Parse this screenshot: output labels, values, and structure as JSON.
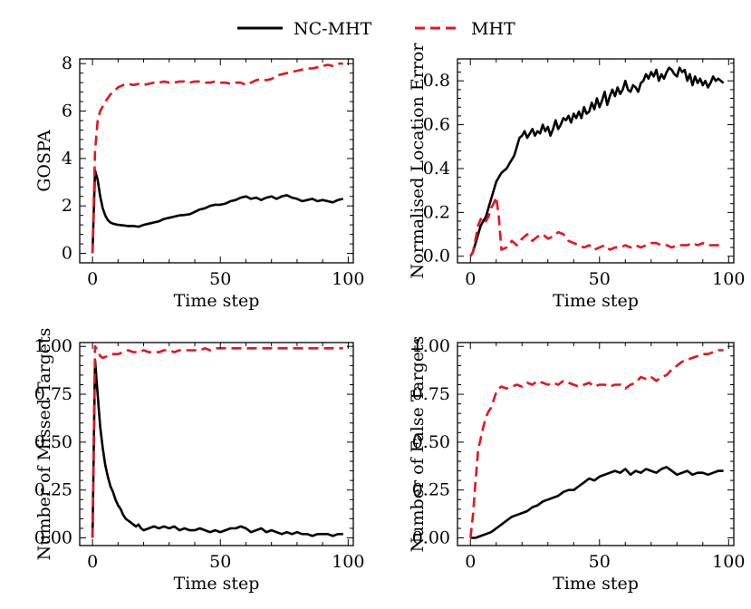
{
  "legend": {
    "items": [
      {
        "label": "NC-MHT",
        "color": "#000000",
        "dash": "solid"
      },
      {
        "label": "MHT",
        "color": "#e8141b",
        "dash": "dashed"
      }
    ]
  },
  "chart_data": [
    {
      "type": "line",
      "title": "",
      "xlabel": "Time step",
      "ylabel": "GOSPA",
      "xlim": [
        -5,
        102
      ],
      "ylim": [
        -0.4,
        8.2
      ],
      "xticks": [
        0,
        50,
        100
      ],
      "xtick_labels": [
        "0",
        "50",
        "100"
      ],
      "yticks": [
        0,
        2,
        4,
        6,
        8
      ],
      "ytick_labels": [
        "0",
        "2",
        "4",
        "6",
        "8"
      ],
      "series": [
        {
          "name": "NC-MHT",
          "x": [
            0,
            1,
            2,
            3,
            4,
            5,
            6,
            7,
            8,
            10,
            12,
            14,
            16,
            18,
            20,
            22,
            24,
            26,
            28,
            30,
            32,
            34,
            36,
            38,
            40,
            42,
            44,
            46,
            48,
            50,
            52,
            54,
            56,
            58,
            60,
            62,
            64,
            66,
            68,
            70,
            72,
            74,
            76,
            78,
            80,
            82,
            84,
            86,
            88,
            90,
            92,
            94,
            96,
            98
          ],
          "y": [
            0,
            3.5,
            3.1,
            2.4,
            1.9,
            1.6,
            1.4,
            1.3,
            1.25,
            1.2,
            1.18,
            1.15,
            1.15,
            1.12,
            1.2,
            1.25,
            1.3,
            1.35,
            1.45,
            1.5,
            1.55,
            1.6,
            1.62,
            1.65,
            1.75,
            1.85,
            1.9,
            2.0,
            2.05,
            2.05,
            2.1,
            2.2,
            2.25,
            2.35,
            2.4,
            2.3,
            2.35,
            2.25,
            2.35,
            2.4,
            2.3,
            2.4,
            2.45,
            2.35,
            2.3,
            2.2,
            2.25,
            2.3,
            2.2,
            2.25,
            2.2,
            2.15,
            2.25,
            2.3
          ]
        },
        {
          "name": "MHT",
          "x": [
            0,
            1,
            2,
            3,
            4,
            5,
            6,
            7,
            8,
            9,
            10,
            11,
            12,
            14,
            16,
            18,
            20,
            22,
            24,
            26,
            28,
            30,
            32,
            34,
            36,
            38,
            40,
            42,
            44,
            46,
            48,
            50,
            52,
            54,
            56,
            58,
            60,
            62,
            64,
            66,
            68,
            70,
            72,
            74,
            76,
            78,
            80,
            82,
            84,
            86,
            88,
            90,
            92,
            94,
            96,
            98
          ],
          "y": [
            0,
            4.3,
            5.6,
            6.0,
            6.2,
            6.4,
            6.55,
            6.7,
            6.8,
            6.9,
            7.0,
            7.05,
            7.1,
            7.15,
            7.1,
            7.15,
            7.1,
            7.15,
            7.2,
            7.2,
            7.25,
            7.2,
            7.2,
            7.25,
            7.25,
            7.2,
            7.25,
            7.25,
            7.2,
            7.2,
            7.25,
            7.2,
            7.2,
            7.15,
            7.2,
            7.2,
            7.1,
            7.2,
            7.3,
            7.35,
            7.3,
            7.35,
            7.5,
            7.55,
            7.6,
            7.65,
            7.7,
            7.75,
            7.8,
            7.8,
            7.85,
            7.9,
            7.95,
            7.9,
            8.0,
            8.0
          ]
        }
      ]
    },
    {
      "type": "line",
      "title": "",
      "xlabel": "Time step",
      "ylabel": "Normalised Location Error",
      "xlim": [
        -5,
        102
      ],
      "ylim": [
        -0.03,
        0.9
      ],
      "xticks": [
        0,
        50,
        100
      ],
      "xtick_labels": [
        "0",
        "50",
        "100"
      ],
      "yticks": [
        0,
        0.2,
        0.4,
        0.6,
        0.8
      ],
      "ytick_labels": [
        "0.0",
        "0.2",
        "0.4",
        "0.6",
        "0.8"
      ],
      "series": [
        {
          "name": "NC-MHT",
          "x": [
            0,
            1,
            2,
            3,
            4,
            5,
            6,
            7,
            8,
            9,
            10,
            11,
            12,
            13,
            14,
            15,
            16,
            17,
            18,
            19,
            20,
            21,
            22,
            23,
            24,
            25,
            26,
            27,
            28,
            29,
            30,
            31,
            32,
            33,
            34,
            35,
            36,
            37,
            38,
            39,
            40,
            41,
            42,
            43,
            44,
            45,
            46,
            47,
            48,
            49,
            50,
            51,
            52,
            53,
            54,
            55,
            56,
            57,
            58,
            59,
            60,
            61,
            62,
            63,
            64,
            65,
            66,
            67,
            68,
            69,
            70,
            71,
            72,
            73,
            74,
            75,
            76,
            77,
            78,
            79,
            80,
            81,
            82,
            83,
            84,
            85,
            86,
            87,
            88,
            89,
            90,
            91,
            92,
            93,
            94,
            95,
            96,
            97,
            98
          ],
          "y": [
            0,
            0.02,
            0.06,
            0.1,
            0.14,
            0.16,
            0.18,
            0.22,
            0.26,
            0.3,
            0.34,
            0.36,
            0.38,
            0.39,
            0.4,
            0.42,
            0.44,
            0.46,
            0.5,
            0.54,
            0.55,
            0.57,
            0.54,
            0.56,
            0.58,
            0.55,
            0.57,
            0.56,
            0.6,
            0.57,
            0.59,
            0.55,
            0.58,
            0.62,
            0.58,
            0.6,
            0.63,
            0.62,
            0.64,
            0.61,
            0.65,
            0.63,
            0.66,
            0.63,
            0.68,
            0.65,
            0.66,
            0.7,
            0.67,
            0.72,
            0.68,
            0.71,
            0.75,
            0.69,
            0.73,
            0.76,
            0.73,
            0.77,
            0.74,
            0.76,
            0.8,
            0.76,
            0.75,
            0.78,
            0.77,
            0.75,
            0.79,
            0.8,
            0.83,
            0.81,
            0.84,
            0.82,
            0.85,
            0.8,
            0.83,
            0.81,
            0.84,
            0.86,
            0.85,
            0.83,
            0.82,
            0.86,
            0.84,
            0.85,
            0.8,
            0.83,
            0.78,
            0.82,
            0.79,
            0.81,
            0.78,
            0.8,
            0.77,
            0.79,
            0.82,
            0.8,
            0.81,
            0.8,
            0.79
          ]
        },
        {
          "name": "MHT",
          "x": [
            0,
            1,
            2,
            3,
            4,
            5,
            6,
            7,
            8,
            9,
            10,
            11,
            12,
            14,
            16,
            18,
            20,
            22,
            24,
            26,
            28,
            30,
            32,
            34,
            36,
            38,
            40,
            42,
            44,
            46,
            48,
            50,
            52,
            54,
            56,
            58,
            60,
            62,
            64,
            66,
            68,
            70,
            72,
            74,
            76,
            78,
            80,
            82,
            84,
            86,
            88,
            90,
            92,
            94,
            96,
            98
          ],
          "y": [
            0,
            0.02,
            0.08,
            0.14,
            0.17,
            0.15,
            0.16,
            0.18,
            0.22,
            0.24,
            0.27,
            0.18,
            0.03,
            0.04,
            0.07,
            0.05,
            0.08,
            0.1,
            0.07,
            0.09,
            0.1,
            0.08,
            0.09,
            0.11,
            0.1,
            0.07,
            0.06,
            0.05,
            0.04,
            0.05,
            0.03,
            0.04,
            0.05,
            0.03,
            0.04,
            0.04,
            0.05,
            0.04,
            0.05,
            0.04,
            0.05,
            0.06,
            0.06,
            0.05,
            0.05,
            0.04,
            0.05,
            0.05,
            0.05,
            0.06,
            0.05,
            0.06,
            0.05,
            0.05,
            0.05,
            0.05
          ]
        }
      ]
    },
    {
      "type": "line",
      "title": "",
      "xlabel": "Time step",
      "ylabel": "Number of Missed Targets",
      "xlim": [
        -5,
        102
      ],
      "ylim": [
        -0.04,
        1.02
      ],
      "xticks": [
        0,
        50,
        100
      ],
      "xtick_labels": [
        "0",
        "50",
        "100"
      ],
      "yticks": [
        0,
        0.25,
        0.5,
        0.75,
        1.0
      ],
      "ytick_labels": [
        "0.00",
        "0.25",
        "0.50",
        "0.75",
        "1.00"
      ],
      "series": [
        {
          "name": "NC-MHT",
          "x": [
            0,
            1,
            2,
            3,
            4,
            5,
            6,
            7,
            8,
            9,
            10,
            11,
            12,
            13,
            14,
            15,
            16,
            17,
            18,
            19,
            20,
            22,
            24,
            26,
            28,
            30,
            32,
            34,
            36,
            38,
            40,
            42,
            44,
            46,
            48,
            50,
            52,
            54,
            56,
            58,
            60,
            62,
            64,
            66,
            68,
            70,
            72,
            74,
            76,
            78,
            80,
            82,
            84,
            86,
            88,
            90,
            92,
            94,
            96,
            98
          ],
          "y": [
            0,
            0.93,
            0.75,
            0.58,
            0.47,
            0.38,
            0.32,
            0.27,
            0.24,
            0.2,
            0.17,
            0.15,
            0.12,
            0.1,
            0.09,
            0.08,
            0.07,
            0.06,
            0.07,
            0.05,
            0.04,
            0.05,
            0.06,
            0.05,
            0.06,
            0.05,
            0.06,
            0.04,
            0.05,
            0.04,
            0.04,
            0.05,
            0.04,
            0.03,
            0.04,
            0.03,
            0.04,
            0.05,
            0.05,
            0.06,
            0.05,
            0.03,
            0.04,
            0.05,
            0.03,
            0.04,
            0.03,
            0.02,
            0.03,
            0.02,
            0.03,
            0.02,
            0.02,
            0.01,
            0.02,
            0.02,
            0.02,
            0.01,
            0.02,
            0.02
          ]
        },
        {
          "name": "MHT",
          "x": [
            0,
            1,
            2,
            3,
            4,
            6,
            8,
            10,
            12,
            14,
            16,
            18,
            20,
            22,
            24,
            26,
            28,
            30,
            32,
            34,
            36,
            38,
            40,
            42,
            44,
            46,
            48,
            50,
            52,
            54,
            56,
            58,
            60,
            62,
            64,
            66,
            68,
            70,
            72,
            74,
            76,
            78,
            80,
            82,
            84,
            86,
            88,
            90,
            92,
            94,
            96,
            98
          ],
          "y": [
            0,
            1.0,
            0.98,
            0.95,
            0.94,
            0.95,
            0.96,
            0.96,
            0.97,
            0.98,
            0.97,
            0.97,
            0.98,
            0.97,
            0.97,
            0.97,
            0.98,
            0.98,
            0.97,
            0.98,
            0.98,
            0.98,
            0.98,
            0.98,
            0.99,
            0.98,
            0.99,
            0.99,
            0.99,
            0.99,
            0.99,
            0.99,
            0.99,
            0.99,
            0.99,
            0.99,
            0.99,
            0.99,
            0.99,
            0.99,
            0.99,
            0.99,
            0.99,
            0.99,
            0.99,
            0.99,
            0.99,
            0.99,
            0.99,
            0.99,
            0.99,
            0.99
          ]
        }
      ]
    },
    {
      "type": "line",
      "title": "",
      "xlabel": "Time step",
      "ylabel": "Number of False Targets",
      "xlim": [
        -5,
        102
      ],
      "ylim": [
        -0.04,
        1.02
      ],
      "xticks": [
        0,
        50,
        100
      ],
      "xtick_labels": [
        "0",
        "50",
        "100"
      ],
      "yticks": [
        0,
        0.25,
        0.5,
        0.75,
        1.0
      ],
      "ytick_labels": [
        "0.00",
        "0.25",
        "0.50",
        "0.75",
        "1.00"
      ],
      "series": [
        {
          "name": "NC-MHT",
          "x": [
            0,
            2,
            4,
            6,
            8,
            10,
            12,
            14,
            16,
            18,
            20,
            22,
            24,
            26,
            28,
            30,
            32,
            34,
            36,
            38,
            40,
            42,
            44,
            46,
            48,
            50,
            52,
            54,
            56,
            58,
            60,
            62,
            64,
            66,
            68,
            70,
            72,
            74,
            76,
            78,
            80,
            82,
            84,
            86,
            88,
            90,
            92,
            94,
            96,
            98
          ],
          "y": [
            0,
            0.0,
            0.01,
            0.02,
            0.03,
            0.05,
            0.07,
            0.09,
            0.11,
            0.12,
            0.13,
            0.14,
            0.16,
            0.17,
            0.19,
            0.2,
            0.21,
            0.22,
            0.24,
            0.25,
            0.25,
            0.27,
            0.29,
            0.31,
            0.3,
            0.32,
            0.33,
            0.34,
            0.35,
            0.34,
            0.36,
            0.33,
            0.35,
            0.34,
            0.36,
            0.35,
            0.34,
            0.36,
            0.37,
            0.35,
            0.33,
            0.34,
            0.35,
            0.33,
            0.34,
            0.34,
            0.33,
            0.34,
            0.35,
            0.35
          ]
        },
        {
          "name": "MHT",
          "x": [
            0,
            1,
            2,
            3,
            4,
            5,
            6,
            7,
            8,
            9,
            10,
            11,
            12,
            14,
            16,
            18,
            20,
            22,
            24,
            26,
            28,
            30,
            32,
            34,
            36,
            38,
            40,
            42,
            44,
            46,
            48,
            50,
            52,
            54,
            56,
            58,
            60,
            62,
            64,
            66,
            68,
            70,
            72,
            74,
            76,
            78,
            80,
            82,
            84,
            86,
            88,
            90,
            92,
            94,
            96,
            98
          ],
          "y": [
            0,
            0.12,
            0.3,
            0.46,
            0.52,
            0.58,
            0.63,
            0.66,
            0.68,
            0.72,
            0.76,
            0.78,
            0.79,
            0.78,
            0.79,
            0.8,
            0.79,
            0.81,
            0.8,
            0.82,
            0.81,
            0.8,
            0.81,
            0.8,
            0.82,
            0.81,
            0.8,
            0.79,
            0.8,
            0.81,
            0.79,
            0.8,
            0.8,
            0.79,
            0.8,
            0.8,
            0.78,
            0.8,
            0.81,
            0.84,
            0.83,
            0.84,
            0.82,
            0.84,
            0.85,
            0.88,
            0.9,
            0.92,
            0.93,
            0.94,
            0.95,
            0.96,
            0.96,
            0.97,
            0.98,
            0.98
          ]
        }
      ]
    }
  ]
}
